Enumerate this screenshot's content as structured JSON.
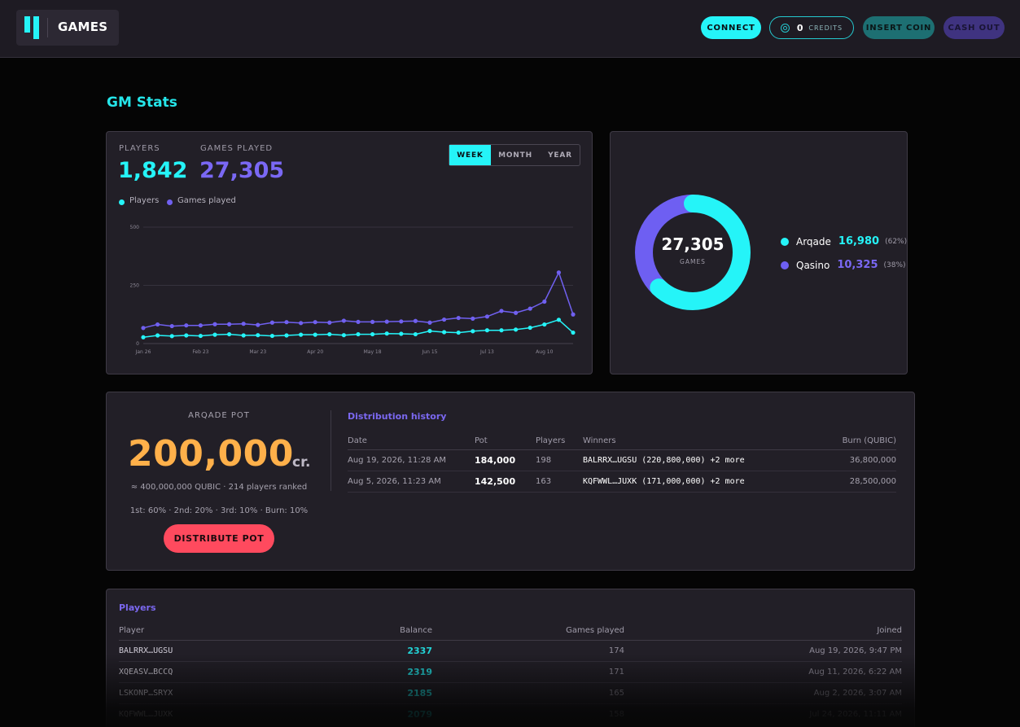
{
  "header": {
    "logo_text": "GAMES",
    "connect_label": "CONNECT",
    "credits_value": "0",
    "credits_label": "CREDITS",
    "insert_label": "INSERT COIN",
    "cashout_label": "CASH OUT"
  },
  "page_title": "GM Stats",
  "stats": {
    "players_label": "PLAYERS",
    "players_value": "1,842",
    "games_label": "GAMES PLAYED",
    "games_value": "27,305",
    "legend_players": "Players",
    "legend_games": "Games played",
    "tabs": [
      {
        "label": "WEEK",
        "active": true
      },
      {
        "label": "MONTH",
        "active": false
      },
      {
        "label": "YEAR",
        "active": false
      }
    ]
  },
  "chart_data": {
    "type": "line",
    "title": "",
    "xlabel": "",
    "ylabel": "",
    "ylim": [
      0,
      500
    ],
    "yticks": [
      "0",
      "250",
      "500"
    ],
    "xtick_labels": [
      "Jan 26",
      "Feb 23",
      "Mar 23",
      "Apr 20",
      "May 18",
      "Jun 15",
      "Jul 13",
      "Aug 10"
    ],
    "xtick_index": [
      0,
      4,
      8,
      12,
      16,
      20,
      24,
      28
    ],
    "grid": true,
    "legend_position": "top-left",
    "series": [
      {
        "name": "Players",
        "color": "#25f4f8",
        "values": [
          27,
          35,
          32,
          35,
          33,
          38,
          40,
          35,
          36,
          33,
          35,
          38,
          38,
          40,
          36,
          40,
          40,
          43,
          42,
          40,
          54,
          49,
          47,
          53,
          57,
          57,
          60,
          68,
          82,
          102,
          47
        ]
      },
      {
        "name": "Games played",
        "color": "#7060f0",
        "values": [
          67,
          82,
          75,
          78,
          78,
          83,
          83,
          85,
          80,
          90,
          92,
          88,
          92,
          90,
          98,
          93,
          93,
          94,
          95,
          97,
          90,
          103,
          110,
          107,
          116,
          140,
          132,
          150,
          180,
          305,
          125
        ]
      }
    ]
  },
  "donut": {
    "total_value": "27,305",
    "total_label": "GAMES",
    "slices": [
      {
        "name": "Arqade",
        "value": "16,980",
        "pct": "(62%)",
        "fraction": 0.622,
        "color": "#25f4f8"
      },
      {
        "name": "Qasino",
        "value": "10,325",
        "pct": "(38%)",
        "fraction": 0.378,
        "color": "#6e5ff2"
      }
    ]
  },
  "pot": {
    "label": "ARQADE POT",
    "value": "200,000",
    "unit": "cr.",
    "sub": "≈ 400,000,000 QUBIC · 214 players ranked",
    "split": "1st: 60% · 2nd: 20% · 3rd: 10% · Burn: 10%",
    "button_label": "DISTRIBUTE POT"
  },
  "distribution": {
    "title": "Distribution history",
    "columns": [
      "Date",
      "Pot",
      "Players",
      "Winners",
      "Burn (QUBIC)"
    ],
    "rows": [
      {
        "date": "Aug 19, 2026, 11:28 AM",
        "pot": "184,000",
        "players": "198",
        "winners": "BALRRX…UGSU (220,800,000) +2 more",
        "burn": "36,800,000"
      },
      {
        "date": "Aug 5, 2026, 11:23 AM",
        "pot": "142,500",
        "players": "163",
        "winners": "KQFWWL…JUXK (171,000,000) +2 more",
        "burn": "28,500,000"
      }
    ]
  },
  "players": {
    "title": "Players",
    "columns": [
      "Player",
      "Balance",
      "Games played",
      "Joined"
    ],
    "rows": [
      {
        "player": "BALRRX…UGSU",
        "balance": "2337",
        "games": "174",
        "joined": "Aug 19, 2026, 9:47 PM"
      },
      {
        "player": "XQEASV…BCCQ",
        "balance": "2319",
        "games": "171",
        "joined": "Aug 11, 2026, 6:22 AM"
      },
      {
        "player": "LSKONP…SRYX",
        "balance": "2185",
        "games": "165",
        "joined": "Aug 2, 2026, 3:07 AM"
      },
      {
        "player": "KQFWWL…JUXK",
        "balance": "2079",
        "games": "158",
        "joined": "Jul 24, 2026, 11:11 AM"
      }
    ]
  }
}
